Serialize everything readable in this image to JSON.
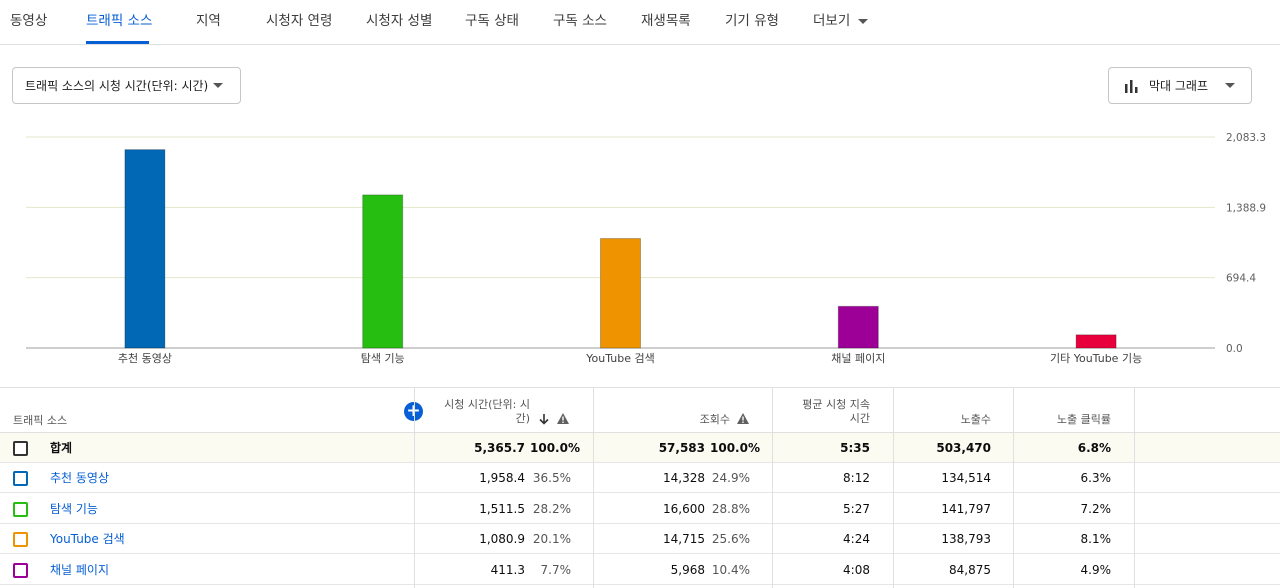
{
  "tabs": [
    {
      "label": "동영상"
    },
    {
      "label": "트래픽 소스"
    },
    {
      "label": "지역"
    },
    {
      "label": "시청자 연령"
    },
    {
      "label": "시청자 성별"
    },
    {
      "label": "구독 상태"
    },
    {
      "label": "구독 소스"
    },
    {
      "label": "재생목록"
    },
    {
      "label": "기기 유형"
    },
    {
      "label": "더보기"
    }
  ],
  "metric_dropdown": {
    "label": "트래픽 소스의 시청 시간(단위: 시간)"
  },
  "chart_type_dropdown": {
    "label": "막대 그래프",
    "icon": "bar-chart-icon"
  },
  "chart_data": {
    "type": "bar",
    "categories": [
      "추천 동영상",
      "탐색 기능",
      "YouTube 검색",
      "채널 페이지",
      "기타 YouTube 기능"
    ],
    "values": [
      1958.4,
      1511.5,
      1080.9,
      411.3,
      130
    ],
    "colors": [
      "#0068b5",
      "#26bf11",
      "#ef9400",
      "#9c0096",
      "#e8003c"
    ],
    "yticks": [
      "0.0",
      "694.4",
      "1,388.9",
      "2,083.3"
    ],
    "ylim": [
      0,
      2083.3
    ],
    "grid": true
  },
  "table": {
    "headers": {
      "source": "트래픽 소스",
      "watch_time": "시청 시간(단위: 시간)",
      "views": "조회수",
      "avg_duration": "평균 시청 지속 시간",
      "impressions": "노출수",
      "ctr": "노출 클릭률"
    },
    "rows": [
      {
        "name": "합계",
        "watch": "5,365.7",
        "watch_pct": "100.0%",
        "views": "57,583",
        "views_pct": "100.0%",
        "avg": "5:35",
        "impr": "503,470",
        "ctr": "6.8%",
        "color": "#333333"
      },
      {
        "name": "추천 동영상",
        "watch": "1,958.4",
        "watch_pct": "36.5%",
        "views": "14,328",
        "views_pct": "24.9%",
        "avg": "8:12",
        "impr": "134,514",
        "ctr": "6.3%",
        "color": "#0068b5"
      },
      {
        "name": "탐색 기능",
        "watch": "1,511.5",
        "watch_pct": "28.2%",
        "views": "16,600",
        "views_pct": "28.8%",
        "avg": "5:27",
        "impr": "141,797",
        "ctr": "7.2%",
        "color": "#26bf11"
      },
      {
        "name": "YouTube 검색",
        "watch": "1,080.9",
        "watch_pct": "20.1%",
        "views": "14,715",
        "views_pct": "25.6%",
        "avg": "4:24",
        "impr": "138,793",
        "ctr": "8.1%",
        "color": "#ef9400"
      },
      {
        "name": "채널 페이지",
        "watch": "411.3",
        "watch_pct": "7.7%",
        "views": "5,968",
        "views_pct": "10.4%",
        "avg": "4:08",
        "impr": "84,875",
        "ctr": "4.9%",
        "color": "#9c0096"
      }
    ]
  }
}
